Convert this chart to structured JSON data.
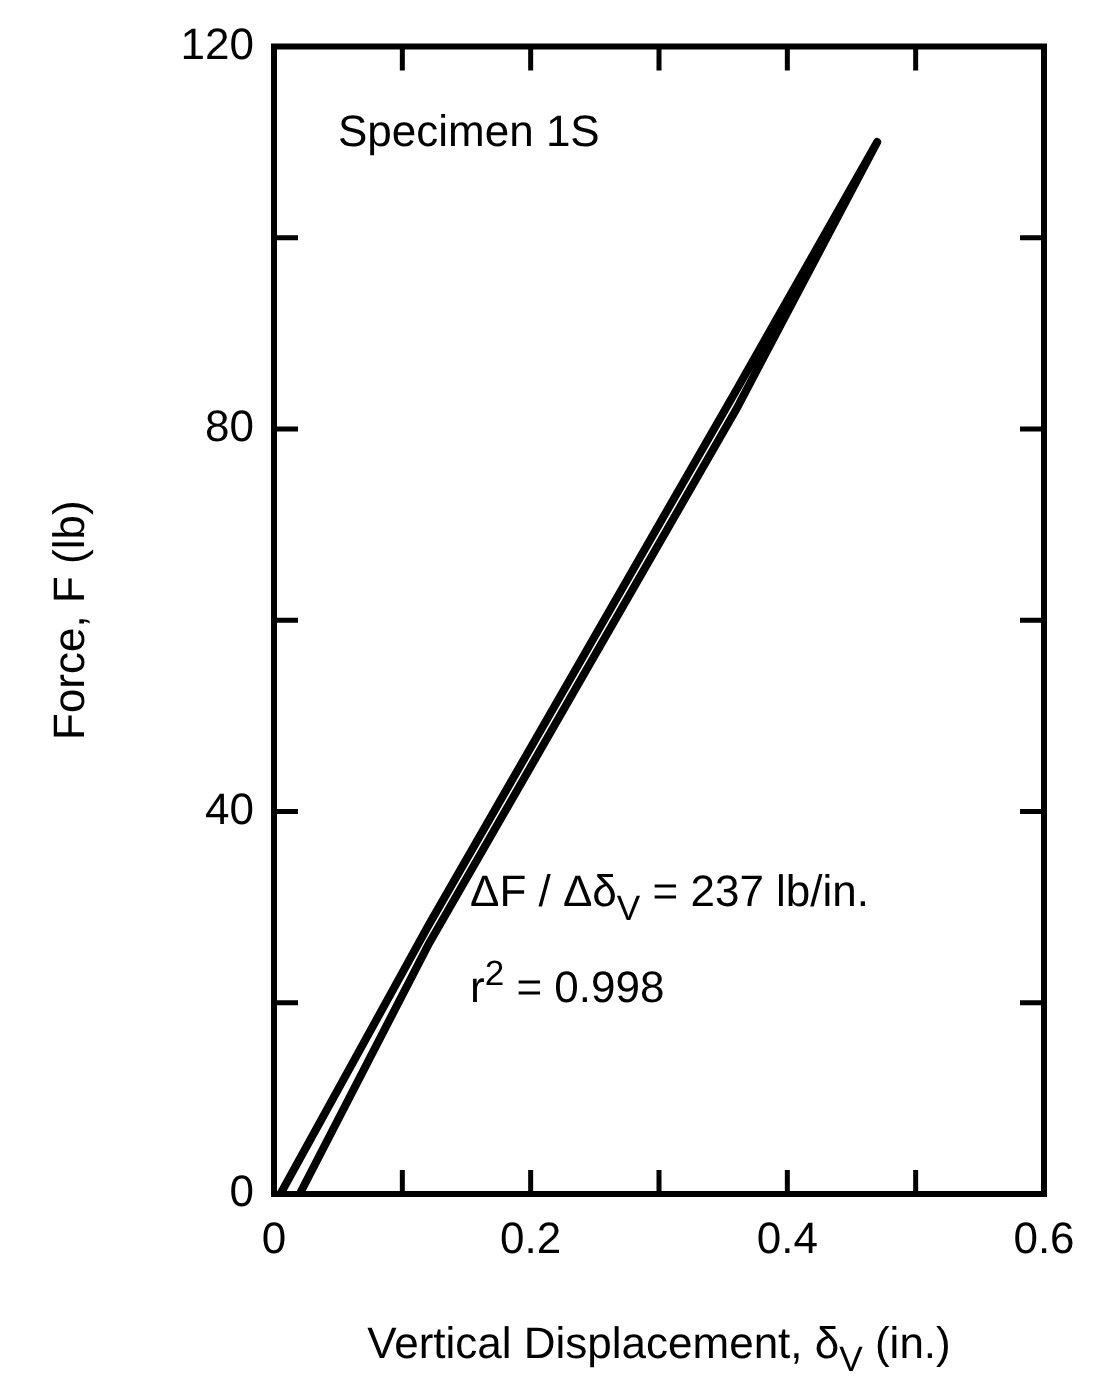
{
  "chart_data": {
    "type": "line",
    "title": "Specimen 1S",
    "xlabel": "Vertical Displacement, δ$_{V}$ (in.)",
    "ylabel": "Force, F (lb)",
    "x": [
      0.005,
      0.12,
      0.24,
      0.36,
      0.47,
      0.36,
      0.24,
      0.12,
      0.02
    ],
    "series": [
      {
        "color": "#000000",
        "values": [
          0,
          28,
          56,
          84,
          110,
          82,
          54,
          26,
          0
        ]
      }
    ],
    "xlim": [
      0,
      0.6
    ],
    "xticks": [
      0,
      {
        "value": 0.1,
        "label": null
      },
      0.2,
      {
        "value": 0.3,
        "label": null
      },
      0.4,
      {
        "value": 0.5,
        "label": null
      },
      0.6
    ],
    "ylim": [
      0,
      120
    ],
    "yticks": [
      0,
      {
        "value": 20,
        "label": null
      },
      40,
      {
        "value": 60,
        "label": null
      },
      80,
      {
        "value": 100,
        "label": null
      },
      120
    ],
    "annotations": [
      "ΔF / Δδ$_{V}$ = 237 lb/in.",
      "r$^{2}$ = 0.998"
    ],
    "grid": false,
    "legend": false,
    "marker": "none",
    "line_style": "solid"
  }
}
